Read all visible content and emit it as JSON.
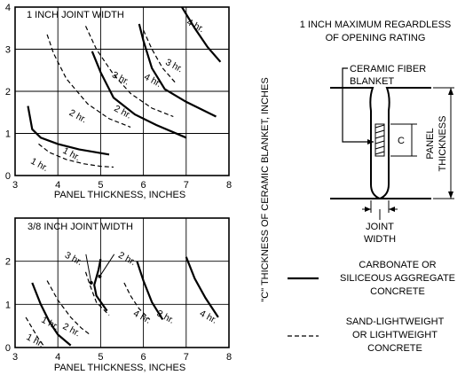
{
  "chart_data": [
    {
      "type": "line",
      "title": "1 INCH JOINT WIDTH",
      "xlabel": "PANEL THICKNESS, INCHES",
      "xlim": [
        3,
        8
      ],
      "ylim": [
        0,
        4
      ],
      "xticks": [
        "3",
        "4",
        "5",
        "6",
        "7",
        "8"
      ],
      "yticks": [
        "0",
        "1",
        "2",
        "3",
        "4"
      ],
      "grid": true,
      "series": [
        {
          "name": "1 hr.",
          "style": "solid",
          "points": [
            [
              3.3,
              1.65
            ],
            [
              3.4,
              1.1
            ],
            [
              3.6,
              0.9
            ],
            [
              4.0,
              0.75
            ],
            [
              4.5,
              0.62
            ],
            [
              5.2,
              0.5
            ]
          ]
        },
        {
          "name": "1 hr.",
          "style": "dashed",
          "points": [
            [
              3.55,
              0.75
            ],
            [
              3.8,
              0.55
            ],
            [
              4.2,
              0.38
            ],
            [
              4.6,
              0.28
            ],
            [
              5.0,
              0.22
            ],
            [
              5.3,
              0.2
            ]
          ]
        },
        {
          "name": "2 hr.",
          "style": "solid",
          "points": [
            [
              4.8,
              2.95
            ],
            [
              5.0,
              2.45
            ],
            [
              5.3,
              1.85
            ],
            [
              5.8,
              1.45
            ],
            [
              6.3,
              1.2
            ],
            [
              7.0,
              0.9
            ]
          ]
        },
        {
          "name": "2 hr.",
          "style": "dashed",
          "points": [
            [
              3.75,
              3.35
            ],
            [
              3.9,
              2.9
            ],
            [
              4.2,
              2.3
            ],
            [
              4.7,
              1.7
            ],
            [
              5.2,
              1.35
            ],
            [
              5.7,
              1.15
            ]
          ]
        },
        {
          "name": "3 hr.",
          "style": "solid",
          "points": [
            [
              5.9,
              3.6
            ],
            [
              6.0,
              3.2
            ],
            [
              6.2,
              2.55
            ],
            [
              6.5,
              2.05
            ],
            [
              7.0,
              1.75
            ],
            [
              7.7,
              1.4
            ]
          ]
        },
        {
          "name": "3 hr.",
          "style": "dashed",
          "points": [
            [
              4.65,
              3.55
            ],
            [
              4.9,
              3.0
            ],
            [
              5.3,
              2.4
            ],
            [
              5.7,
              1.95
            ],
            [
              6.2,
              1.6
            ],
            [
              6.7,
              1.4
            ]
          ]
        },
        {
          "name": "4 hr.",
          "style": "solid",
          "points": [
            [
              6.9,
              4.0
            ],
            [
              7.2,
              3.5
            ],
            [
              7.5,
              3.05
            ],
            [
              7.8,
              2.7
            ]
          ]
        },
        {
          "name": "4 hr.",
          "style": "dashed",
          "points": [
            [
              6.0,
              3.45
            ],
            [
              6.2,
              3.0
            ],
            [
              6.45,
              2.55
            ],
            [
              6.75,
              2.2
            ]
          ]
        }
      ],
      "curve_labels": [
        {
          "text": "1 hr.",
          "x": 4.1,
          "y": 0.55
        },
        {
          "text": "1 hr.",
          "x": 3.35,
          "y": 0.3
        },
        {
          "text": "2 hr.",
          "x": 5.3,
          "y": 1.55
        },
        {
          "text": "2 hr.",
          "x": 4.25,
          "y": 1.45
        },
        {
          "text": "3 hr.",
          "x": 5.25,
          "y": 2.35
        },
        {
          "text": "3 hr.",
          "x": 6.5,
          "y": 2.65
        },
        {
          "text": "4 hr.",
          "x": 7.0,
          "y": 3.6
        },
        {
          "text": "4 hr.",
          "x": 6.0,
          "y": 2.3
        }
      ]
    },
    {
      "type": "line",
      "title": "3/8 INCH JOINT WIDTH",
      "xlabel": "PANEL THICKNESS, INCHES",
      "xlim": [
        3,
        8
      ],
      "ylim": [
        0,
        3
      ],
      "xticks": [
        "3",
        "4",
        "5",
        "6",
        "7",
        "8"
      ],
      "yticks": [
        "0",
        "1",
        "2"
      ],
      "grid": true,
      "series": [
        {
          "name": "1 hr.",
          "style": "solid",
          "points": [
            [
              3.4,
              1.5
            ],
            [
              3.6,
              1.0
            ],
            [
              3.8,
              0.6
            ],
            [
              4.0,
              0.3
            ],
            [
              4.3,
              0.05
            ]
          ]
        },
        {
          "name": "1 hr.",
          "style": "dashed",
          "points": [
            [
              3.25,
              0.7
            ],
            [
              3.4,
              0.45
            ],
            [
              3.55,
              0.2
            ],
            [
              3.7,
              0.0
            ]
          ]
        },
        {
          "name": "2 hr.",
          "style": "solid",
          "points": [
            [
              5.0,
              2.05
            ],
            [
              4.95,
              1.8
            ],
            [
              4.85,
              1.45
            ],
            [
              4.9,
              1.2
            ],
            [
              5.15,
              0.85
            ]
          ]
        },
        {
          "name": "2 hr.",
          "style": "dashed",
          "points": [
            [
              3.75,
              1.55
            ],
            [
              4.0,
              1.1
            ],
            [
              4.3,
              0.7
            ],
            [
              4.55,
              0.45
            ],
            [
              4.75,
              0.3
            ]
          ]
        },
        {
          "name": "3 hr.",
          "style": "solid",
          "points": [
            [
              5.85,
              2.0
            ],
            [
              6.0,
              1.55
            ],
            [
              6.2,
              1.05
            ],
            [
              6.45,
              0.65
            ]
          ]
        },
        {
          "name": "3 hr.",
          "style": "dashed",
          "points": [
            [
              4.65,
              1.75
            ],
            [
              4.75,
              1.45
            ],
            [
              4.9,
              1.05
            ],
            [
              5.2,
              0.75
            ]
          ]
        },
        {
          "name": "4 hr.",
          "style": "solid",
          "points": [
            [
              7.0,
              2.1
            ],
            [
              7.2,
              1.6
            ],
            [
              7.45,
              1.15
            ],
            [
              7.75,
              0.7
            ]
          ]
        },
        {
          "name": "4 hr.",
          "style": "dashed",
          "points": [
            [
              5.55,
              1.5
            ],
            [
              5.7,
              1.2
            ],
            [
              5.9,
              0.9
            ],
            [
              6.15,
              0.65
            ]
          ]
        }
      ],
      "curve_labels": [
        {
          "text": "1 hr.",
          "x": 3.6,
          "y": 0.6
        },
        {
          "text": "1 hr.",
          "x": 3.25,
          "y": 0.2
        },
        {
          "text": "2 hr.",
          "x": 5.4,
          "y": 2.1
        },
        {
          "text": "2 hr.",
          "x": 4.1,
          "y": 0.45
        },
        {
          "text": "3 hr.",
          "x": 4.15,
          "y": 2.1
        },
        {
          "text": "3 hr.",
          "x": 6.3,
          "y": 0.75
        },
        {
          "text": "4 hr.",
          "x": 7.3,
          "y": 0.75
        },
        {
          "text": "4 hr.",
          "x": 5.75,
          "y": 0.75
        }
      ],
      "pointer_labels": [
        {
          "text": "3 hr.",
          "label_x": 4.2,
          "label_y": 2.1,
          "target_x": 4.78,
          "target_y": 1.5
        },
        {
          "text": "2 hr.",
          "label_x": 5.4,
          "label_y": 2.1,
          "target_x": 4.98,
          "target_y": 1.65
        }
      ]
    }
  ],
  "shared_ylabel": "\"C\" THICKNESS OF CERAMIC BLANKET, INCHES",
  "side_panel": {
    "note_line1": "1 INCH MAXIMUM REGARDLESS",
    "note_line2": "OF OPENING RATING",
    "blanket_label_line1": "CERAMIC FIBER",
    "blanket_label_line2": "BLANKET",
    "c_label": "C",
    "panel_thickness_line1": "PANEL",
    "panel_thickness_line2": "THICKNESS",
    "joint_width_line1": "JOINT",
    "joint_width_line2": "WIDTH"
  },
  "legend": [
    {
      "style": "solid",
      "line1": "CARBONATE OR",
      "line2": "SILICEOUS AGGREGATE",
      "line3": "CONCRETE"
    },
    {
      "style": "dashed",
      "line1": "SAND-LIGHTWEIGHT",
      "line2": "OR LIGHTWEIGHT",
      "line3": "CONCRETE"
    }
  ]
}
